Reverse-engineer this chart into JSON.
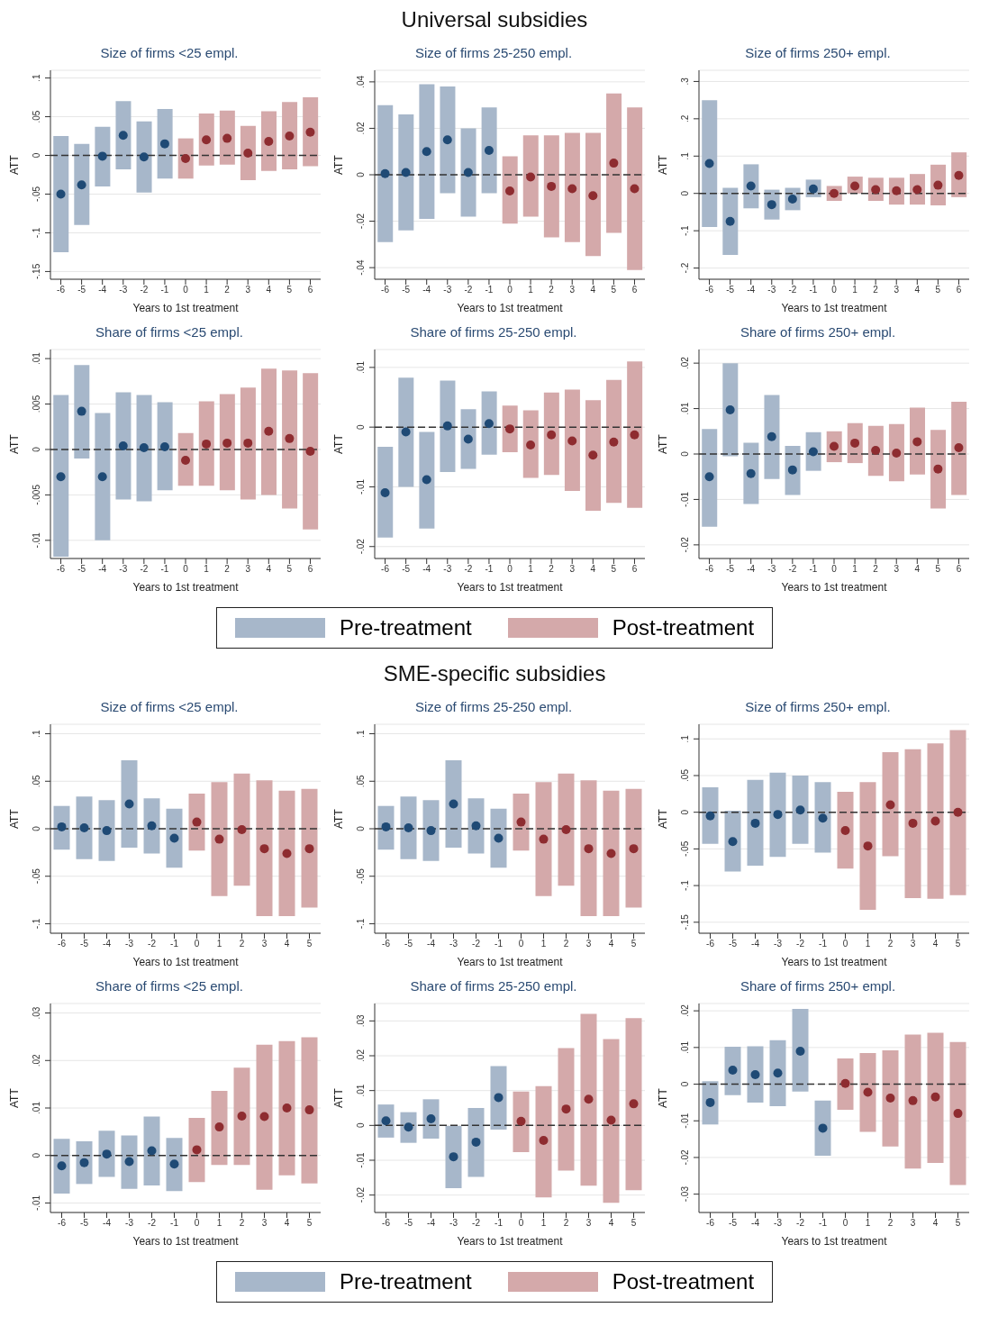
{
  "chart_data": [
    {
      "type": "other",
      "title": "Universal subsidies"
    },
    {
      "type": "bar",
      "title": "Size of firms <25 empl.",
      "xlabel": "Years to 1st treatment",
      "ylabel": "ATT",
      "categories": [
        "-6",
        "-5",
        "-4",
        "-3",
        "-2",
        "-1",
        "0",
        "1",
        "2",
        "3",
        "4",
        "5",
        "6"
      ],
      "ylim": [
        -0.16,
        0.11
      ],
      "yticks": [
        {
          "value": -0.15,
          "label": "-.15"
        },
        {
          "value": -0.1,
          "label": "-.1"
        },
        {
          "value": -0.05,
          "label": "-.05"
        },
        {
          "value": 0,
          "label": "0"
        },
        {
          "value": 0.05,
          "label": ".05"
        },
        {
          "value": 0.1,
          "label": ".1"
        }
      ],
      "grid": "y",
      "ref_lines": [
        {
          "axis": "y",
          "value": 0,
          "line_style": "dashed",
          "color": "#333333"
        }
      ],
      "series": [
        {
          "type": "bar",
          "colors": [
            "#a7b7ca",
            "#a7b7ca",
            "#a7b7ca",
            "#a7b7ca",
            "#a7b7ca",
            "#a7b7ca",
            "#d4a9aa",
            "#d4a9aa",
            "#d4a9aa",
            "#d4a9aa",
            "#d4a9aa",
            "#d4a9aa",
            "#d4a9aa"
          ],
          "base": [
            -0.125,
            -0.09,
            -0.04,
            -0.018,
            -0.048,
            -0.03,
            -0.03,
            -0.013,
            -0.012,
            -0.032,
            -0.02,
            -0.018,
            -0.014
          ],
          "values": [
            0.15,
            0.105,
            0.077,
            0.088,
            0.092,
            0.09,
            0.052,
            0.067,
            0.07,
            0.07,
            0.077,
            0.087,
            0.089
          ]
        },
        {
          "type": "scatter",
          "marker": "circle",
          "colors": [
            "#1f4a75",
            "#1f4a75",
            "#1f4a75",
            "#1f4a75",
            "#1f4a75",
            "#1f4a75",
            "#8e2c30",
            "#8e2c30",
            "#8e2c30",
            "#8e2c30",
            "#8e2c30",
            "#8e2c30",
            "#8e2c30"
          ],
          "values": [
            -0.05,
            -0.038,
            -0.001,
            0.026,
            -0.002,
            0.015,
            -0.004,
            0.02,
            0.022,
            0.003,
            0.018,
            0.025,
            0.03
          ]
        }
      ]
    },
    {
      "type": "bar",
      "title": "Size of firms 25-250 empl.",
      "xlabel": "Years to 1st treatment",
      "ylabel": "ATT",
      "categories": [
        "-6",
        "-5",
        "-4",
        "-3",
        "-2",
        "-1",
        "0",
        "1",
        "2",
        "3",
        "4",
        "5",
        "6"
      ],
      "ylim": [
        -0.045,
        0.045
      ],
      "yticks": [
        {
          "value": -0.04,
          "label": "-.04"
        },
        {
          "value": -0.02,
          "label": "-.02"
        },
        {
          "value": 0,
          "label": "0"
        },
        {
          "value": 0.02,
          "label": ".02"
        },
        {
          "value": 0.04,
          "label": ".04"
        }
      ],
      "grid": "y",
      "ref_lines": [
        {
          "axis": "y",
          "value": 0,
          "line_style": "dashed",
          "color": "#333333"
        }
      ],
      "series": [
        {
          "type": "bar",
          "colors": [
            "#a7b7ca",
            "#a7b7ca",
            "#a7b7ca",
            "#a7b7ca",
            "#a7b7ca",
            "#a7b7ca",
            "#d4a9aa",
            "#d4a9aa",
            "#d4a9aa",
            "#d4a9aa",
            "#d4a9aa",
            "#d4a9aa",
            "#d4a9aa"
          ],
          "base": [
            -0.029,
            -0.024,
            -0.019,
            -0.008,
            -0.018,
            -0.008,
            -0.021,
            -0.018,
            -0.027,
            -0.029,
            -0.035,
            -0.025,
            -0.041
          ],
          "values": [
            0.059,
            0.05,
            0.058,
            0.046,
            0.038,
            0.037,
            0.029,
            0.035,
            0.044,
            0.047,
            0.053,
            0.06,
            0.07
          ]
        },
        {
          "type": "scatter",
          "marker": "circle",
          "colors": [
            "#1f4a75",
            "#1f4a75",
            "#1f4a75",
            "#1f4a75",
            "#1f4a75",
            "#1f4a75",
            "#8e2c30",
            "#8e2c30",
            "#8e2c30",
            "#8e2c30",
            "#8e2c30",
            "#8e2c30",
            "#8e2c30"
          ],
          "values": [
            0.0005,
            0.001,
            0.01,
            0.015,
            0.001,
            0.0105,
            -0.007,
            -0.001,
            -0.005,
            -0.006,
            -0.009,
            0.005,
            -0.006
          ]
        }
      ]
    },
    {
      "type": "bar",
      "title": "Size of firms 250+ empl.",
      "xlabel": "Years to 1st treatment",
      "ylabel": "ATT",
      "categories": [
        "-6",
        "-5",
        "-4",
        "-3",
        "-2",
        "-1",
        "0",
        "1",
        "2",
        "3",
        "4",
        "5",
        "6"
      ],
      "ylim": [
        -0.23,
        0.33
      ],
      "yticks": [
        {
          "value": -0.2,
          "label": "-.2"
        },
        {
          "value": -0.1,
          "label": "-.1"
        },
        {
          "value": 0,
          "label": "0"
        },
        {
          "value": 0.1,
          "label": ".1"
        },
        {
          "value": 0.2,
          "label": ".2"
        },
        {
          "value": 0.3,
          "label": ".3"
        }
      ],
      "grid": "y",
      "ref_lines": [
        {
          "axis": "y",
          "value": 0,
          "line_style": "dashed",
          "color": "#333333"
        }
      ],
      "series": [
        {
          "type": "bar",
          "colors": [
            "#a7b7ca",
            "#a7b7ca",
            "#a7b7ca",
            "#a7b7ca",
            "#a7b7ca",
            "#a7b7ca",
            "#d4a9aa",
            "#d4a9aa",
            "#d4a9aa",
            "#d4a9aa",
            "#d4a9aa",
            "#d4a9aa",
            "#d4a9aa"
          ],
          "base": [
            -0.09,
            -0.165,
            -0.04,
            -0.07,
            -0.045,
            -0.01,
            -0.02,
            0,
            -0.02,
            -0.03,
            -0.03,
            -0.032,
            -0.01
          ],
          "values": [
            0.34,
            0.18,
            0.118,
            0.08,
            0.06,
            0.047,
            0.04,
            0.045,
            0.062,
            0.072,
            0.082,
            0.109,
            0.12
          ]
        },
        {
          "type": "scatter",
          "marker": "circle",
          "colors": [
            "#1f4a75",
            "#1f4a75",
            "#1f4a75",
            "#1f4a75",
            "#1f4a75",
            "#1f4a75",
            "#8e2c30",
            "#8e2c30",
            "#8e2c30",
            "#8e2c30",
            "#8e2c30",
            "#8e2c30",
            "#8e2c30"
          ],
          "values": [
            0.08,
            -0.075,
            0.02,
            -0.03,
            -0.015,
            0.012,
            0,
            0.02,
            0.01,
            0.007,
            0.01,
            0.022,
            0.048
          ]
        }
      ]
    },
    {
      "type": "bar",
      "title": "Share of firms <25 empl.",
      "xlabel": "Years to 1st treatment",
      "ylabel": "ATT",
      "categories": [
        "-6",
        "-5",
        "-4",
        "-3",
        "-2",
        "-1",
        "0",
        "1",
        "2",
        "3",
        "4",
        "5",
        "6"
      ],
      "ylim": [
        -0.012,
        0.011
      ],
      "yticks": [
        {
          "value": -0.01,
          "label": "-.01"
        },
        {
          "value": -0.005,
          "label": "-.005"
        },
        {
          "value": 0,
          "label": "0"
        },
        {
          "value": 0.005,
          "label": ".005"
        },
        {
          "value": 0.01,
          "label": ".01"
        }
      ],
      "grid": "y",
      "ref_lines": [
        {
          "axis": "y",
          "value": 0,
          "line_style": "dashed",
          "color": "#333333"
        }
      ],
      "series": [
        {
          "type": "bar",
          "colors": [
            "#a7b7ca",
            "#a7b7ca",
            "#a7b7ca",
            "#a7b7ca",
            "#a7b7ca",
            "#a7b7ca",
            "#d4a9aa",
            "#d4a9aa",
            "#d4a9aa",
            "#d4a9aa",
            "#d4a9aa",
            "#d4a9aa",
            "#d4a9aa"
          ],
          "base": [
            -0.0118,
            -0.001,
            -0.01,
            -0.0055,
            -0.0057,
            -0.0045,
            -0.004,
            -0.004,
            -0.0045,
            -0.0055,
            -0.005,
            -0.0065,
            -0.0088
          ],
          "values": [
            0.0178,
            0.0103,
            0.014,
            0.0118,
            0.0117,
            0.0097,
            0.0058,
            0.0093,
            0.0106,
            0.0123,
            0.0139,
            0.0152,
            0.0172
          ]
        },
        {
          "type": "scatter",
          "marker": "circle",
          "colors": [
            "#1f4a75",
            "#1f4a75",
            "#1f4a75",
            "#1f4a75",
            "#1f4a75",
            "#1f4a75",
            "#8e2c30",
            "#8e2c30",
            "#8e2c30",
            "#8e2c30",
            "#8e2c30",
            "#8e2c30",
            "#8e2c30"
          ],
          "values": [
            -0.003,
            0.0042,
            -0.003,
            0.0004,
            0.0002,
            0.0003,
            -0.0012,
            0.0006,
            0.0007,
            0.0007,
            0.002,
            0.0012,
            -0.0002
          ]
        }
      ]
    },
    {
      "type": "bar",
      "title": "Share of firms 25-250 empl.",
      "xlabel": "Years to 1st treatment",
      "ylabel": "ATT",
      "categories": [
        "-6",
        "-5",
        "-4",
        "-3",
        "-2",
        "-1",
        "0",
        "1",
        "2",
        "3",
        "4",
        "5",
        "6"
      ],
      "ylim": [
        -0.022,
        0.013
      ],
      "yticks": [
        {
          "value": -0.02,
          "label": "-.02"
        },
        {
          "value": -0.01,
          "label": "-.01"
        },
        {
          "value": 0,
          "label": "0"
        },
        {
          "value": 0.01,
          "label": ".01"
        }
      ],
      "grid": "y",
      "ref_lines": [
        {
          "axis": "y",
          "value": 0,
          "line_style": "dashed",
          "color": "#333333"
        }
      ],
      "series": [
        {
          "type": "bar",
          "colors": [
            "#a7b7ca",
            "#a7b7ca",
            "#a7b7ca",
            "#a7b7ca",
            "#a7b7ca",
            "#a7b7ca",
            "#d4a9aa",
            "#d4a9aa",
            "#d4a9aa",
            "#d4a9aa",
            "#d4a9aa",
            "#d4a9aa",
            "#d4a9aa"
          ],
          "base": [
            -0.0185,
            -0.01,
            -0.017,
            -0.0075,
            -0.007,
            -0.0046,
            -0.0042,
            -0.0085,
            -0.008,
            -0.0107,
            -0.014,
            -0.0127,
            -0.0135
          ],
          "values": [
            0.0152,
            0.0183,
            0.0162,
            0.0153,
            0.01,
            0.0106,
            0.0078,
            0.0113,
            0.0138,
            0.017,
            0.0185,
            0.0206,
            0.0245
          ]
        },
        {
          "type": "scatter",
          "marker": "circle",
          "colors": [
            "#1f4a75",
            "#1f4a75",
            "#1f4a75",
            "#1f4a75",
            "#1f4a75",
            "#1f4a75",
            "#8e2c30",
            "#8e2c30",
            "#8e2c30",
            "#8e2c30",
            "#8e2c30",
            "#8e2c30",
            "#8e2c30"
          ],
          "values": [
            -0.011,
            -0.0008,
            -0.0088,
            0.0002,
            -0.002,
            0.0006,
            -0.0003,
            -0.003,
            -0.0013,
            -0.0023,
            -0.0047,
            -0.0025,
            -0.0013
          ]
        }
      ]
    },
    {
      "type": "bar",
      "title": "Share of firms 250+ empl.",
      "xlabel": "Years to 1st treatment",
      "ylabel": "ATT",
      "categories": [
        "-6",
        "-5",
        "-4",
        "-3",
        "-2",
        "-1",
        "0",
        "1",
        "2",
        "3",
        "4",
        "5",
        "6"
      ],
      "ylim": [
        -0.023,
        0.023
      ],
      "yticks": [
        {
          "value": -0.02,
          "label": "-.02"
        },
        {
          "value": -0.01,
          "label": "-.01"
        },
        {
          "value": 0,
          "label": "0"
        },
        {
          "value": 0.01,
          "label": ".01"
        },
        {
          "value": 0.02,
          "label": ".02"
        }
      ],
      "grid": "y",
      "ref_lines": [
        {
          "axis": "y",
          "value": 0,
          "line_style": "dashed",
          "color": "#333333"
        }
      ],
      "series": [
        {
          "type": "bar",
          "colors": [
            "#a7b7ca",
            "#a7b7ca",
            "#a7b7ca",
            "#a7b7ca",
            "#a7b7ca",
            "#a7b7ca",
            "#d4a9aa",
            "#d4a9aa",
            "#d4a9aa",
            "#d4a9aa",
            "#d4a9aa",
            "#d4a9aa",
            "#d4a9aa"
          ],
          "base": [
            -0.016,
            -0.0005,
            -0.011,
            -0.0055,
            -0.009,
            -0.0037,
            -0.0018,
            -0.002,
            -0.0048,
            -0.006,
            -0.0045,
            -0.012,
            -0.009
          ],
          "values": [
            0.0215,
            0.0205,
            0.0135,
            0.0185,
            0.0108,
            0.0085,
            0.0068,
            0.0088,
            0.011,
            0.0126,
            0.0147,
            0.0173,
            0.0205
          ]
        },
        {
          "type": "scatter",
          "marker": "circle",
          "colors": [
            "#1f4a75",
            "#1f4a75",
            "#1f4a75",
            "#1f4a75",
            "#1f4a75",
            "#1f4a75",
            "#8e2c30",
            "#8e2c30",
            "#8e2c30",
            "#8e2c30",
            "#8e2c30",
            "#8e2c30",
            "#8e2c30"
          ],
          "values": [
            -0.005,
            0.0097,
            -0.0043,
            0.0038,
            -0.0035,
            0.0005,
            0.0017,
            0.0024,
            0.0008,
            0.0002,
            0.0027,
            -0.0033,
            0.0014
          ]
        }
      ]
    },
    {
      "type": "other",
      "legend": "bottom",
      "series": [
        {
          "name": "Pre-treatment",
          "color": "#a7b7ca"
        },
        {
          "name": "Post-treatment",
          "color": "#d4a9aa"
        }
      ]
    },
    {
      "type": "other",
      "title": "SME-specific subsidies"
    },
    {
      "type": "bar",
      "title": "Size of firms <25 empl.",
      "xlabel": "Years to 1st treatment",
      "ylabel": "ATT",
      "categories": [
        "-6",
        "-5",
        "-4",
        "-3",
        "-2",
        "-1",
        "0",
        "1",
        "2",
        "3",
        "4",
        "5"
      ],
      "ylim": [
        -0.11,
        0.11
      ],
      "yticks": [
        {
          "value": -0.1,
          "label": "-.1"
        },
        {
          "value": -0.05,
          "label": "-.05"
        },
        {
          "value": 0,
          "label": "0"
        },
        {
          "value": 0.05,
          "label": ".05"
        },
        {
          "value": 0.1,
          "label": ".1"
        }
      ],
      "grid": "y",
      "ref_lines": [
        {
          "axis": "y",
          "value": 0,
          "line_style": "dashed",
          "color": "#333333"
        }
      ],
      "series": [
        {
          "type": "bar",
          "colors": [
            "#a7b7ca",
            "#a7b7ca",
            "#a7b7ca",
            "#a7b7ca",
            "#a7b7ca",
            "#a7b7ca",
            "#d4a9aa",
            "#d4a9aa",
            "#d4a9aa",
            "#d4a9aa",
            "#d4a9aa",
            "#d4a9aa"
          ],
          "base": [
            -0.022,
            -0.032,
            -0.034,
            -0.02,
            -0.026,
            -0.041,
            -0.023,
            -0.071,
            -0.06,
            -0.092,
            -0.092,
            -0.083
          ],
          "values": [
            0.046,
            0.066,
            0.064,
            0.092,
            0.058,
            0.062,
            0.06,
            0.12,
            0.118,
            0.143,
            0.132,
            0.125
          ]
        },
        {
          "type": "scatter",
          "marker": "circle",
          "colors": [
            "#1f4a75",
            "#1f4a75",
            "#1f4a75",
            "#1f4a75",
            "#1f4a75",
            "#1f4a75",
            "#8e2c30",
            "#8e2c30",
            "#8e2c30",
            "#8e2c30",
            "#8e2c30",
            "#8e2c30"
          ],
          "values": [
            0.002,
            0.001,
            -0.002,
            0.026,
            0.003,
            -0.01,
            0.007,
            -0.011,
            -0.001,
            -0.021,
            -0.026,
            -0.021
          ]
        }
      ]
    },
    {
      "type": "bar",
      "title": "Size of firms 25-250 empl.",
      "xlabel": "Years to 1st treatment",
      "ylabel": "ATT",
      "categories": [
        "-6",
        "-5",
        "-4",
        "-3",
        "-2",
        "-1",
        "0",
        "1",
        "2",
        "3",
        "4",
        "5"
      ],
      "ylim": [
        -0.11,
        0.11
      ],
      "yticks": [
        {
          "value": -0.1,
          "label": "-.1"
        },
        {
          "value": -0.05,
          "label": "-.05"
        },
        {
          "value": 0,
          "label": "0"
        },
        {
          "value": 0.05,
          "label": ".05"
        },
        {
          "value": 0.1,
          "label": ".1"
        }
      ],
      "grid": "y",
      "ref_lines": [
        {
          "axis": "y",
          "value": 0,
          "line_style": "dashed",
          "color": "#333333"
        }
      ],
      "series": [
        {
          "type": "bar",
          "colors": [
            "#a7b7ca",
            "#a7b7ca",
            "#a7b7ca",
            "#a7b7ca",
            "#a7b7ca",
            "#a7b7ca",
            "#d4a9aa",
            "#d4a9aa",
            "#d4a9aa",
            "#d4a9aa",
            "#d4a9aa",
            "#d4a9aa"
          ],
          "base": [
            -0.022,
            -0.032,
            -0.034,
            -0.02,
            -0.026,
            -0.041,
            -0.023,
            -0.071,
            -0.06,
            -0.092,
            -0.092,
            -0.083
          ],
          "values": [
            0.046,
            0.066,
            0.064,
            0.092,
            0.058,
            0.062,
            0.06,
            0.12,
            0.118,
            0.143,
            0.132,
            0.125
          ]
        },
        {
          "type": "scatter",
          "marker": "circle",
          "colors": [
            "#1f4a75",
            "#1f4a75",
            "#1f4a75",
            "#1f4a75",
            "#1f4a75",
            "#1f4a75",
            "#8e2c30",
            "#8e2c30",
            "#8e2c30",
            "#8e2c30",
            "#8e2c30",
            "#8e2c30"
          ],
          "values": [
            0.002,
            0.001,
            -0.002,
            0.026,
            0.003,
            -0.01,
            0.007,
            -0.011,
            -0.001,
            -0.021,
            -0.026,
            -0.021
          ]
        }
      ]
    },
    {
      "type": "bar",
      "title": "Size of firms 250+ empl.",
      "xlabel": "Years to 1st treatment",
      "ylabel": "ATT",
      "categories": [
        "-6",
        "-5",
        "-4",
        "-3",
        "-2",
        "-1",
        "0",
        "1",
        "2",
        "3",
        "4",
        "5"
      ],
      "ylim": [
        -0.165,
        0.12
      ],
      "yticks": [
        {
          "value": -0.15,
          "label": "-.15"
        },
        {
          "value": -0.1,
          "label": "-.1"
        },
        {
          "value": -0.05,
          "label": "-.05"
        },
        {
          "value": 0,
          "label": "0"
        },
        {
          "value": 0.05,
          "label": ".05"
        },
        {
          "value": 0.1,
          "label": ".1"
        }
      ],
      "grid": "y",
      "ref_lines": [
        {
          "axis": "y",
          "value": 0,
          "line_style": "dashed",
          "color": "#333333"
        }
      ],
      "series": [
        {
          "type": "bar",
          "colors": [
            "#a7b7ca",
            "#a7b7ca",
            "#a7b7ca",
            "#a7b7ca",
            "#a7b7ca",
            "#a7b7ca",
            "#d4a9aa",
            "#d4a9aa",
            "#d4a9aa",
            "#d4a9aa",
            "#d4a9aa",
            "#d4a9aa"
          ],
          "base": [
            -0.043,
            -0.081,
            -0.073,
            -0.061,
            -0.043,
            -0.055,
            -0.077,
            -0.133,
            -0.06,
            -0.117,
            -0.118,
            -0.113
          ],
          "values": [
            0.077,
            0.083,
            0.117,
            0.115,
            0.093,
            0.096,
            0.105,
            0.174,
            0.142,
            0.203,
            0.212,
            0.225
          ]
        },
        {
          "type": "scatter",
          "marker": "circle",
          "colors": [
            "#1f4a75",
            "#1f4a75",
            "#1f4a75",
            "#1f4a75",
            "#1f4a75",
            "#1f4a75",
            "#8e2c30",
            "#8e2c30",
            "#8e2c30",
            "#8e2c30",
            "#8e2c30",
            "#8e2c30"
          ],
          "values": [
            -0.005,
            -0.04,
            -0.015,
            -0.003,
            0.003,
            -0.008,
            -0.025,
            -0.046,
            0.01,
            -0.015,
            -0.012,
            0
          ]
        }
      ]
    },
    {
      "type": "bar",
      "title": "Share of firms <25 empl.",
      "xlabel": "Years to 1st treatment",
      "ylabel": "ATT",
      "categories": [
        "-6",
        "-5",
        "-4",
        "-3",
        "-2",
        "-1",
        "0",
        "1",
        "2",
        "3",
        "4",
        "5"
      ],
      "ylim": [
        -0.012,
        0.032
      ],
      "yticks": [
        {
          "value": -0.01,
          "label": "-.01"
        },
        {
          "value": 0,
          "label": "0"
        },
        {
          "value": 0.01,
          "label": ".01"
        },
        {
          "value": 0.02,
          "label": ".02"
        },
        {
          "value": 0.03,
          "label": ".03"
        }
      ],
      "grid": "y",
      "ref_lines": [
        {
          "axis": "y",
          "value": 0,
          "line_style": "dashed",
          "color": "#333333"
        }
      ],
      "series": [
        {
          "type": "bar",
          "colors": [
            "#a7b7ca",
            "#a7b7ca",
            "#a7b7ca",
            "#a7b7ca",
            "#a7b7ca",
            "#a7b7ca",
            "#d4a9aa",
            "#d4a9aa",
            "#d4a9aa",
            "#d4a9aa",
            "#d4a9aa",
            "#d4a9aa"
          ],
          "base": [
            -0.008,
            -0.006,
            -0.0045,
            -0.007,
            -0.0063,
            -0.0075,
            -0.0056,
            -0.002,
            -0.002,
            -0.0072,
            -0.0042,
            -0.0059
          ],
          "values": [
            0.0115,
            0.009,
            0.0097,
            0.0112,
            0.0145,
            0.0112,
            0.0135,
            0.0156,
            0.0205,
            0.0305,
            0.0283,
            0.0308
          ]
        },
        {
          "type": "scatter",
          "marker": "circle",
          "colors": [
            "#1f4a75",
            "#1f4a75",
            "#1f4a75",
            "#1f4a75",
            "#1f4a75",
            "#1f4a75",
            "#8e2c30",
            "#8e2c30",
            "#8e2c30",
            "#8e2c30",
            "#8e2c30",
            "#8e2c30"
          ],
          "values": [
            -0.0022,
            -0.0015,
            0.0003,
            -0.0013,
            0.001,
            -0.0018,
            0.0012,
            0.006,
            0.0083,
            0.0082,
            0.01,
            0.0096
          ]
        }
      ]
    },
    {
      "type": "bar",
      "title": "Share of firms 25-250 empl.",
      "xlabel": "Years to 1st treatment",
      "ylabel": "ATT",
      "categories": [
        "-6",
        "-5",
        "-4",
        "-3",
        "-2",
        "-1",
        "0",
        "1",
        "2",
        "3",
        "4",
        "5"
      ],
      "ylim": [
        -0.025,
        0.035
      ],
      "yticks": [
        {
          "value": -0.02,
          "label": "-.02"
        },
        {
          "value": -0.01,
          "label": "-.01"
        },
        {
          "value": 0,
          "label": "0"
        },
        {
          "value": 0.01,
          "label": ".01"
        },
        {
          "value": 0.02,
          "label": ".02"
        },
        {
          "value": 0.03,
          "label": ".03"
        }
      ],
      "grid": "y",
      "ref_lines": [
        {
          "axis": "y",
          "value": 0,
          "line_style": "dashed",
          "color": "#333333"
        }
      ],
      "series": [
        {
          "type": "bar",
          "colors": [
            "#a7b7ca",
            "#a7b7ca",
            "#a7b7ca",
            "#a7b7ca",
            "#a7b7ca",
            "#a7b7ca",
            "#d4a9aa",
            "#d4a9aa",
            "#d4a9aa",
            "#d4a9aa",
            "#d4a9aa",
            "#d4a9aa"
          ],
          "base": [
            -0.0035,
            -0.005,
            -0.0038,
            -0.018,
            -0.0148,
            -0.0012,
            -0.0077,
            -0.0207,
            -0.013,
            -0.0173,
            -0.0222,
            -0.0186
          ],
          "values": [
            0.0095,
            0.0088,
            0.0113,
            0.0178,
            0.0198,
            0.0182,
            0.0174,
            0.032,
            0.0352,
            0.0493,
            0.047,
            0.0494
          ]
        },
        {
          "type": "scatter",
          "marker": "circle",
          "colors": [
            "#1f4a75",
            "#1f4a75",
            "#1f4a75",
            "#1f4a75",
            "#1f4a75",
            "#1f4a75",
            "#8e2c30",
            "#8e2c30",
            "#8e2c30",
            "#8e2c30",
            "#8e2c30",
            "#8e2c30"
          ],
          "values": [
            0.0013,
            -0.0005,
            0.0019,
            -0.009,
            -0.0048,
            0.008,
            0.0012,
            -0.0043,
            0.0047,
            0.0075,
            0.0015,
            0.0062
          ]
        }
      ]
    },
    {
      "type": "bar",
      "title": "Share of firms 250+ empl.",
      "xlabel": "Years to 1st treatment",
      "ylabel": "ATT",
      "categories": [
        "-6",
        "-5",
        "-4",
        "-3",
        "-2",
        "-1",
        "0",
        "1",
        "2",
        "3",
        "4",
        "5"
      ],
      "ylim": [
        -0.035,
        0.022
      ],
      "yticks": [
        {
          "value": -0.03,
          "label": "-.03"
        },
        {
          "value": -0.02,
          "label": "-.02"
        },
        {
          "value": -0.01,
          "label": "-.01"
        },
        {
          "value": 0,
          "label": "0"
        },
        {
          "value": 0.01,
          "label": ".01"
        },
        {
          "value": 0.02,
          "label": ".02"
        }
      ],
      "grid": "y",
      "ref_lines": [
        {
          "axis": "y",
          "value": 0,
          "line_style": "dashed",
          "color": "#333333"
        }
      ],
      "series": [
        {
          "type": "bar",
          "colors": [
            "#a7b7ca",
            "#a7b7ca",
            "#a7b7ca",
            "#a7b7ca",
            "#a7b7ca",
            "#a7b7ca",
            "#d4a9aa",
            "#d4a9aa",
            "#d4a9aa",
            "#d4a9aa",
            "#d4a9aa",
            "#d4a9aa"
          ],
          "base": [
            -0.011,
            -0.003,
            -0.005,
            -0.006,
            -0.002,
            -0.0195,
            -0.007,
            -0.013,
            -0.017,
            -0.023,
            -0.0215,
            -0.0275
          ],
          "values": [
            0.0118,
            0.0132,
            0.0153,
            0.018,
            0.0225,
            0.015,
            0.014,
            0.0215,
            0.0262,
            0.0365,
            0.0355,
            0.039
          ]
        },
        {
          "type": "scatter",
          "marker": "circle",
          "colors": [
            "#1f4a75",
            "#1f4a75",
            "#1f4a75",
            "#1f4a75",
            "#1f4a75",
            "#1f4a75",
            "#8e2c30",
            "#8e2c30",
            "#8e2c30",
            "#8e2c30",
            "#8e2c30",
            "#8e2c30"
          ],
          "values": [
            -0.005,
            0.0038,
            0.0026,
            0.003,
            0.009,
            -0.012,
            0.0002,
            -0.0022,
            -0.0038,
            -0.0045,
            -0.0035,
            -0.008
          ]
        }
      ]
    },
    {
      "type": "other",
      "legend": "bottom",
      "series": [
        {
          "name": "Pre-treatment",
          "color": "#a7b7ca"
        },
        {
          "name": "Post-treatment",
          "color": "#d4a9aa"
        }
      ]
    }
  ]
}
